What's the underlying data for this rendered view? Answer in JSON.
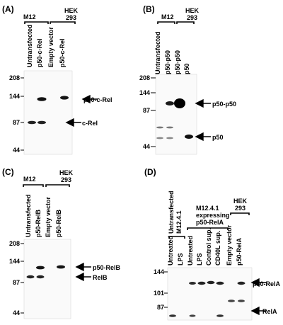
{
  "panels": [
    {
      "id": "A",
      "label": "(A)",
      "groups": [
        "M12",
        "HEK\n293"
      ],
      "lanes": [
        "Untransfected",
        "p50-c-Rel",
        "Empty vector",
        "p50-c-Rel"
      ],
      "markers": [
        "208",
        "144",
        "87",
        "44"
      ],
      "bands": [
        "p50-c-Rel",
        "c-Rel"
      ]
    },
    {
      "id": "B",
      "label": "(B)",
      "groups": [
        "M12",
        "HEK\n293"
      ],
      "lanes": [
        "Untransfected",
        "p50-p50",
        "p50-p50",
        "p50"
      ],
      "markers": [
        "208",
        "144",
        "87",
        "44"
      ],
      "bands": [
        "p50-p50",
        "p50"
      ]
    },
    {
      "id": "C",
      "label": "(C)",
      "groups": [
        "M12",
        "HEK\n293"
      ],
      "lanes": [
        "Untransfected",
        "p50-RelB",
        "Empty vector",
        "p50-RelB"
      ],
      "markers": [
        "208",
        "144",
        "87",
        "44"
      ],
      "bands": [
        "p50-RelB",
        "RelB"
      ]
    },
    {
      "id": "D",
      "label": "(D)",
      "groups": [
        "Untransfected\nM12.4.1",
        "M12.4.1\nexpressing\np50-RelA",
        "HEK\n293"
      ],
      "lanes": [
        "Untreated",
        "LPS",
        "Untreated",
        "LPS",
        "Control sup.",
        "CD40L sup.",
        "Empty vector",
        "p50-RelA"
      ],
      "markers": [
        "144",
        "101",
        "87"
      ],
      "bands": [
        "p50-RelA",
        "RelA"
      ]
    }
  ]
}
